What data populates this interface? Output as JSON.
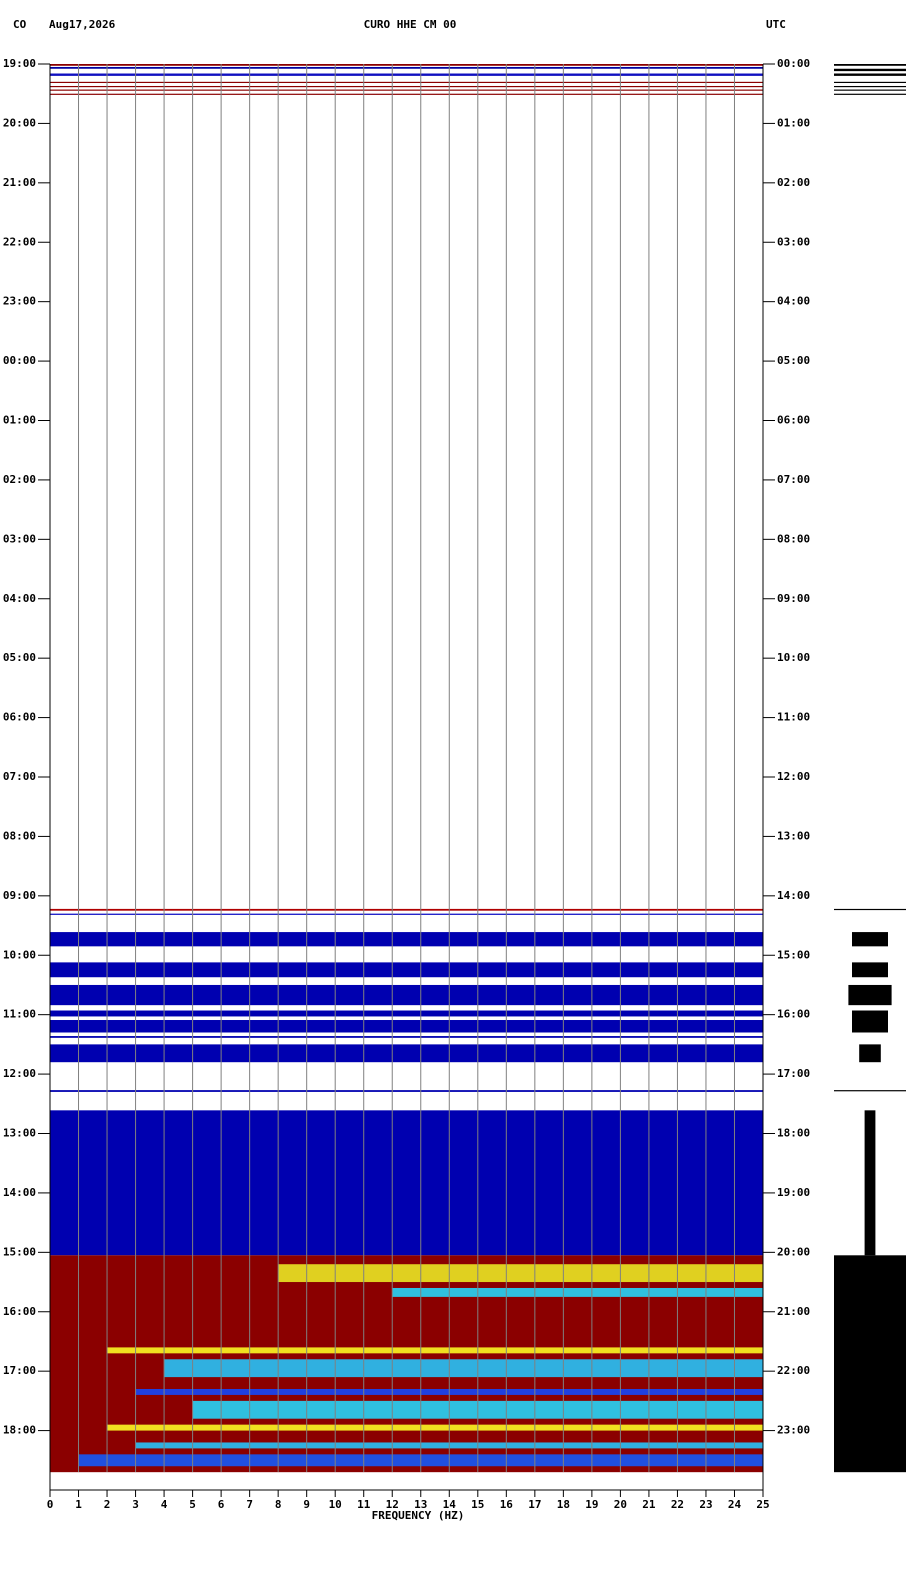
{
  "chart_data": {
    "type": "spectrogram",
    "network": "CO",
    "date": "Aug17,2026",
    "title": "CURO HHE CM 00",
    "timezone": "UTC",
    "xlabel": "FREQUENCY (HZ)",
    "xlim": [
      0,
      25
    ],
    "xticks": [
      0,
      1,
      2,
      3,
      4,
      5,
      6,
      7,
      8,
      9,
      10,
      11,
      12,
      13,
      14,
      15,
      16,
      17,
      18,
      19,
      20,
      21,
      22,
      23,
      24,
      25
    ],
    "grid": true,
    "grid_color": "#808080",
    "ylim": [
      0,
      24
    ],
    "yticks": [
      {
        "value": 0,
        "label": "19:00"
      },
      {
        "value": 1,
        "label": "20:00"
      },
      {
        "value": 2,
        "label": "21:00"
      },
      {
        "value": 3,
        "label": "22:00"
      },
      {
        "value": 4,
        "label": "23:00"
      },
      {
        "value": 5,
        "label": "00:00"
      },
      {
        "value": 6,
        "label": "01:00"
      },
      {
        "value": 7,
        "label": "02:00"
      },
      {
        "value": 8,
        "label": "03:00"
      },
      {
        "value": 9,
        "label": "04:00"
      },
      {
        "value": 10,
        "label": "05:00"
      },
      {
        "value": 11,
        "label": "06:00"
      },
      {
        "value": 12,
        "label": "07:00"
      },
      {
        "value": 13,
        "label": "08:00"
      },
      {
        "value": 14,
        "label": "09:00"
      },
      {
        "value": 15,
        "label": "10:00"
      },
      {
        "value": 16,
        "label": "11:00"
      },
      {
        "value": 17,
        "label": "12:00"
      },
      {
        "value": 18,
        "label": "13:00"
      },
      {
        "value": 19,
        "label": "14:00"
      },
      {
        "value": 20,
        "label": "15:00"
      },
      {
        "value": 21,
        "label": "16:00"
      },
      {
        "value": 22,
        "label": "17:00"
      },
      {
        "value": 23,
        "label": "18:00"
      }
    ],
    "y2lim": [
      0,
      24
    ],
    "y2ticks": [
      {
        "value": 0,
        "label": "00:00"
      },
      {
        "value": 1,
        "label": "01:00"
      },
      {
        "value": 2,
        "label": "02:00"
      },
      {
        "value": 3,
        "label": "03:00"
      },
      {
        "value": 4,
        "label": "04:00"
      },
      {
        "value": 5,
        "label": "05:00"
      },
      {
        "value": 6,
        "label": "06:00"
      },
      {
        "value": 7,
        "label": "07:00"
      },
      {
        "value": 8,
        "label": "08:00"
      },
      {
        "value": 9,
        "label": "09:00"
      },
      {
        "value": 10,
        "label": "10:00"
      },
      {
        "value": 11,
        "label": "11:00"
      },
      {
        "value": 12,
        "label": "12:00"
      },
      {
        "value": 13,
        "label": "13:00"
      },
      {
        "value": 14,
        "label": "14:00"
      },
      {
        "value": 15,
        "label": "15:00"
      },
      {
        "value": 16,
        "label": "16:00"
      },
      {
        "value": 17,
        "label": "17:00"
      },
      {
        "value": 18,
        "label": "18:00"
      },
      {
        "value": 19,
        "label": "19:00"
      },
      {
        "value": 20,
        "label": "20:00"
      },
      {
        "value": 21,
        "label": "21:00"
      },
      {
        "value": 22,
        "label": "22:00"
      },
      {
        "value": 23,
        "label": "23:00"
      }
    ],
    "bands": [
      {
        "start": 0,
        "end": 0.03,
        "fmin": 0,
        "fmax": 25,
        "color": "#8b0000"
      },
      {
        "start": 0.05,
        "end": 0.08,
        "fmin": 0,
        "fmax": 25,
        "color": "#0000a0"
      },
      {
        "start": 0.16,
        "end": 0.2,
        "fmin": 0,
        "fmax": 25,
        "color": "#1010c0"
      },
      {
        "start": 0.3,
        "end": 0.32,
        "fmin": 0,
        "fmax": 25,
        "color": "#8b0000"
      },
      {
        "start": 0.37,
        "end": 0.39,
        "fmin": 0,
        "fmax": 25,
        "color": "#8b0000"
      },
      {
        "start": 0.43,
        "end": 0.45,
        "fmin": 0,
        "fmax": 25,
        "color": "#8b0000"
      },
      {
        "start": 0.5,
        "end": 0.52,
        "fmin": 0,
        "fmax": 25,
        "color": "#8b0000"
      },
      {
        "start": 14.22,
        "end": 14.25,
        "fmin": 0,
        "fmax": 25,
        "color": "#b00000"
      },
      {
        "start": 14.3,
        "end": 14.32,
        "fmin": 0,
        "fmax": 25,
        "color": "#0000c0"
      },
      {
        "start": 14.61,
        "end": 14.85,
        "fmin": 0,
        "fmax": 25,
        "color": "#0000b0"
      },
      {
        "start": 15.12,
        "end": 15.37,
        "fmin": 0,
        "fmax": 25,
        "color": "#0000b0"
      },
      {
        "start": 15.5,
        "end": 15.84,
        "fmin": 0,
        "fmax": 25,
        "color": "#0000b0"
      },
      {
        "start": 15.93,
        "end": 16.03,
        "fmin": 0,
        "fmax": 25,
        "color": "#0000b0"
      },
      {
        "start": 16.09,
        "end": 16.3,
        "fmin": 0,
        "fmax": 25,
        "color": "#0000b0"
      },
      {
        "start": 16.36,
        "end": 16.39,
        "fmin": 0,
        "fmax": 25,
        "color": "#0000b0"
      },
      {
        "start": 16.5,
        "end": 16.8,
        "fmin": 0,
        "fmax": 25,
        "color": "#0000b0"
      },
      {
        "start": 17.27,
        "end": 17.3,
        "fmin": 0,
        "fmax": 25,
        "color": "#0000b0"
      },
      {
        "start": 17.61,
        "end": 20.05,
        "fmin": 0,
        "fmax": 25,
        "color": "#0000b0"
      },
      {
        "start": 20.05,
        "end": 23.7,
        "fmin": 0,
        "fmax": 25,
        "color": "#8b0000"
      },
      {
        "start": 20.2,
        "end": 20.5,
        "fmin": 8,
        "fmax": 25,
        "color": "#e0d020"
      },
      {
        "start": 20.6,
        "end": 20.75,
        "fmin": 12,
        "fmax": 25,
        "color": "#30c0e0"
      },
      {
        "start": 21.6,
        "end": 21.7,
        "fmin": 2,
        "fmax": 25,
        "color": "#f0e020"
      },
      {
        "start": 21.8,
        "end": 22.1,
        "fmin": 4,
        "fmax": 25,
        "color": "#30b0e0"
      },
      {
        "start": 22.3,
        "end": 22.4,
        "fmin": 3,
        "fmax": 25,
        "color": "#2040e0"
      },
      {
        "start": 22.5,
        "end": 22.8,
        "fmin": 5,
        "fmax": 25,
        "color": "#30c0e0"
      },
      {
        "start": 22.9,
        "end": 23.0,
        "fmin": 2,
        "fmax": 25,
        "color": "#f0e020"
      },
      {
        "start": 23.2,
        "end": 23.3,
        "fmin": 3,
        "fmax": 25,
        "color": "#30b0e0"
      },
      {
        "start": 23.4,
        "end": 23.6,
        "fmin": 1,
        "fmax": 25,
        "color": "#2050e0"
      }
    ],
    "trace": [
      {
        "start": 0,
        "end": 0.03,
        "width": 1
      },
      {
        "start": 0.08,
        "end": 0.12,
        "width": 1
      },
      {
        "start": 0.16,
        "end": 0.2,
        "width": 1
      },
      {
        "start": 0.3,
        "end": 0.32,
        "width": 1
      },
      {
        "start": 0.37,
        "end": 0.39,
        "width": 1
      },
      {
        "start": 0.43,
        "end": 0.45,
        "width": 1
      },
      {
        "start": 0.5,
        "end": 0.52,
        "width": 1
      },
      {
        "start": 14.22,
        "end": 14.24,
        "width": 1
      },
      {
        "start": 14.61,
        "end": 14.85,
        "width": 0.5
      },
      {
        "start": 15.12,
        "end": 15.37,
        "width": 0.5
      },
      {
        "start": 15.5,
        "end": 15.84,
        "width": 0.6
      },
      {
        "start": 15.93,
        "end": 16.3,
        "width": 0.5
      },
      {
        "start": 16.5,
        "end": 16.8,
        "width": 0.3
      },
      {
        "start": 17.27,
        "end": 17.29,
        "width": 1
      },
      {
        "start": 17.61,
        "end": 20.05,
        "width": 0.15
      },
      {
        "start": 20.05,
        "end": 23.7,
        "width": 1
      }
    ]
  }
}
